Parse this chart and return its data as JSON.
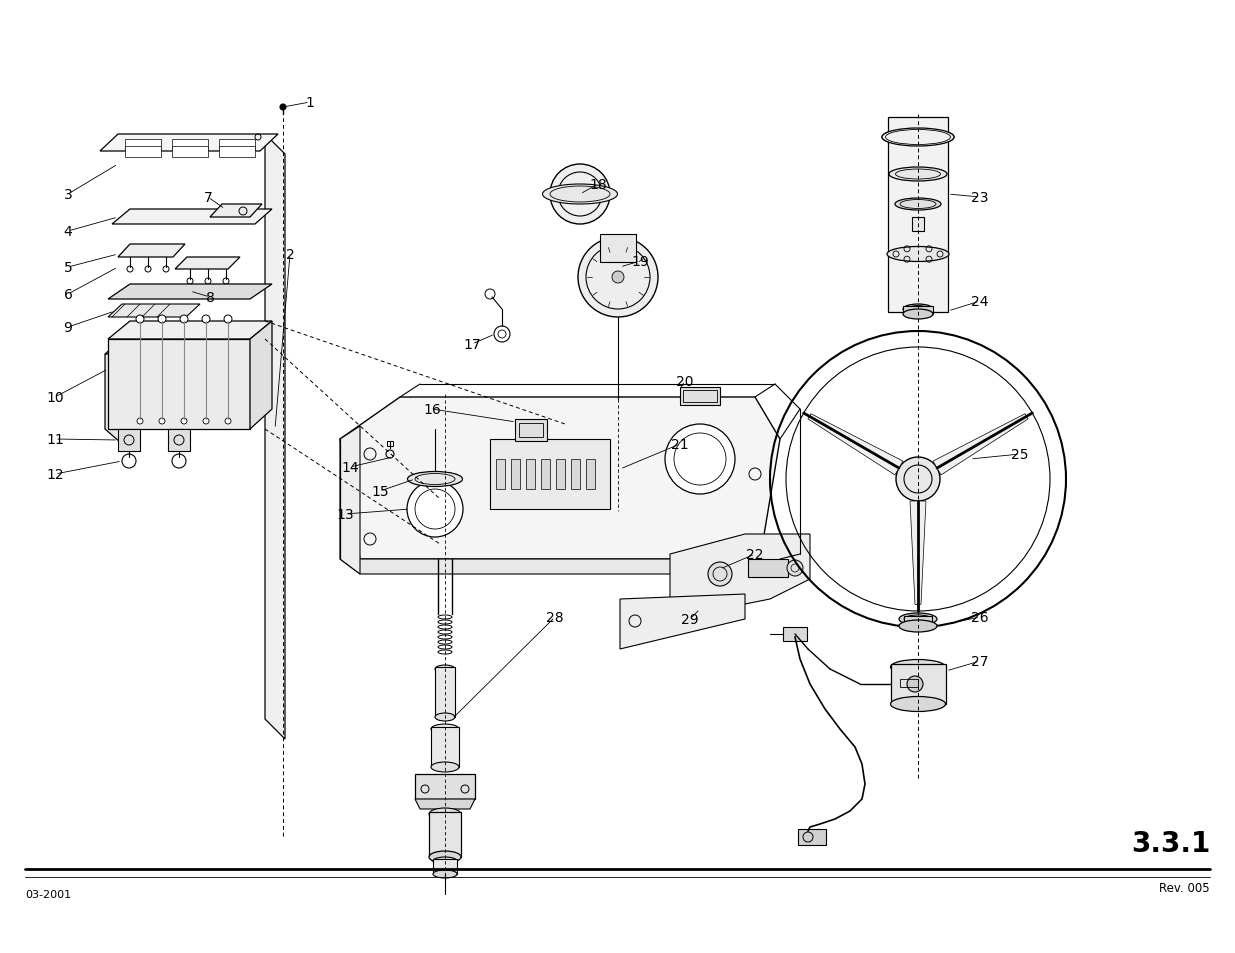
{
  "background_color": "#ffffff",
  "page_number": "3.3.1",
  "rev_text": "Rev. 005",
  "date_text": "03-2001",
  "line_color": "#000000",
  "gray_light": "#e0e0e0",
  "gray_mid": "#c8c8c8",
  "gray_dark": "#b0b0b0"
}
